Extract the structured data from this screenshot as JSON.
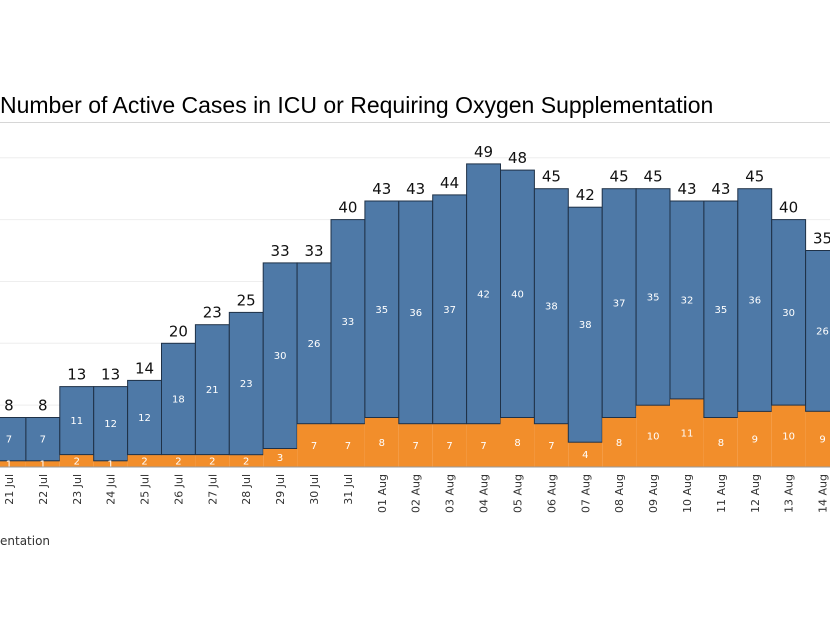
{
  "chart_data": {
    "type": "bar",
    "stacked": true,
    "title": "Number of Active Cases in ICU or Requiring Oxygen Supplementation",
    "categories": [
      "21 Jul",
      "22 Jul",
      "23 Jul",
      "24 Jul",
      "25 Jul",
      "26 Jul",
      "27 Jul",
      "28 Jul",
      "29 Jul",
      "30 Jul",
      "31 Jul",
      "01 Aug",
      "02 Aug",
      "03 Aug",
      "04 Aug",
      "05 Aug",
      "06 Aug",
      "07 Aug",
      "08 Aug",
      "09 Aug",
      "10 Aug",
      "11 Aug",
      "12 Aug",
      "13 Aug",
      "14 Aug"
    ],
    "series": [
      {
        "color": "#f28e2b",
        "values": [
          1,
          1,
          2,
          1,
          2,
          2,
          2,
          2,
          3,
          7,
          7,
          8,
          7,
          7,
          7,
          8,
          7,
          4,
          8,
          10,
          11,
          8,
          9,
          10,
          9
        ]
      },
      {
        "color": "#4e79a7",
        "values": [
          7,
          7,
          11,
          12,
          12,
          18,
          21,
          23,
          30,
          26,
          33,
          35,
          36,
          37,
          42,
          40,
          38,
          38,
          37,
          35,
          32,
          35,
          36,
          30,
          26
        ]
      }
    ],
    "totals": [
      8,
      8,
      13,
      13,
      14,
      20,
      23,
      25,
      33,
      33,
      40,
      43,
      43,
      44,
      49,
      48,
      45,
      42,
      45,
      45,
      43,
      43,
      45,
      40,
      35
    ],
    "ylim": [
      0,
      52
    ],
    "grid": true
  },
  "legend_fragment": "entation"
}
